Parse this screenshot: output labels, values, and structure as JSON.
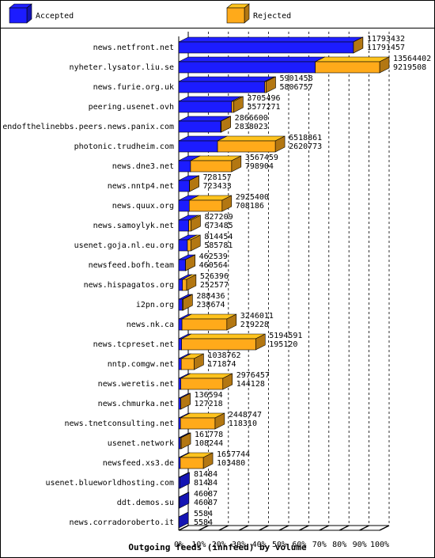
{
  "chart_data": {
    "type": "bar3d",
    "title": "Outgoing feeds (innfeed) by volume",
    "legend": [
      {
        "name": "Accepted",
        "color": "#1c1cff"
      },
      {
        "name": "Rejected",
        "color": "#ffaa1a"
      }
    ],
    "categories": [
      "news.netfront.net",
      "nyheter.lysator.liu.se",
      "news.furie.org.uk",
      "peering.usenet.ovh",
      "endofthelinebbs.peers.news.panix.com",
      "photonic.trudheim.com",
      "news.dne3.net",
      "news.nntp4.net",
      "news.quux.org",
      "news.samoylyk.net",
      "usenet.goja.nl.eu.org",
      "newsfeed.bofh.team",
      "news.hispagatos.org",
      "i2pn.org",
      "news.nk.ca",
      "news.tcpreset.net",
      "nntp.comgw.net",
      "news.weretis.net",
      "news.chmurka.net",
      "news.tnetconsulting.net",
      "usenet.network",
      "newsfeed.xs3.de",
      "usenet.blueworldhosting.com",
      "ddt.demos.su",
      "news.corradoroberto.it"
    ],
    "totals": [
      11793432,
      13564402,
      5901458,
      3705496,
      2866600,
      6518861,
      3567459,
      728157,
      2925400,
      827209,
      814454,
      462539,
      526396,
      288436,
      3246011,
      5194591,
      1038762,
      2976457,
      136594,
      2448747,
      161778,
      1657744,
      81484,
      46087,
      5584
    ],
    "accepted": [
      11791457,
      9219508,
      5806757,
      3577271,
      2838023,
      2620773,
      798904,
      723433,
      708186,
      673485,
      585781,
      460564,
      252577,
      238674,
      219228,
      195120,
      171874,
      144128,
      127218,
      118310,
      108244,
      103480,
      81484,
      46087,
      5584
    ],
    "xlim": [
      0,
      100
    ],
    "xticks": [
      {
        "value": 0,
        "label": "0%"
      },
      {
        "value": 10,
        "label": "10%"
      },
      {
        "value": 20,
        "label": "20%"
      },
      {
        "value": 30,
        "label": "30%"
      },
      {
        "value": 40,
        "label": "40%"
      },
      {
        "value": 50,
        "label": "50%"
      },
      {
        "value": 60,
        "label": "60%"
      },
      {
        "value": 70,
        "label": "70%"
      },
      {
        "value": 80,
        "label": "80%"
      },
      {
        "value": 90,
        "label": "90%"
      },
      {
        "value": 100,
        "label": "100%"
      }
    ],
    "grid": true
  }
}
